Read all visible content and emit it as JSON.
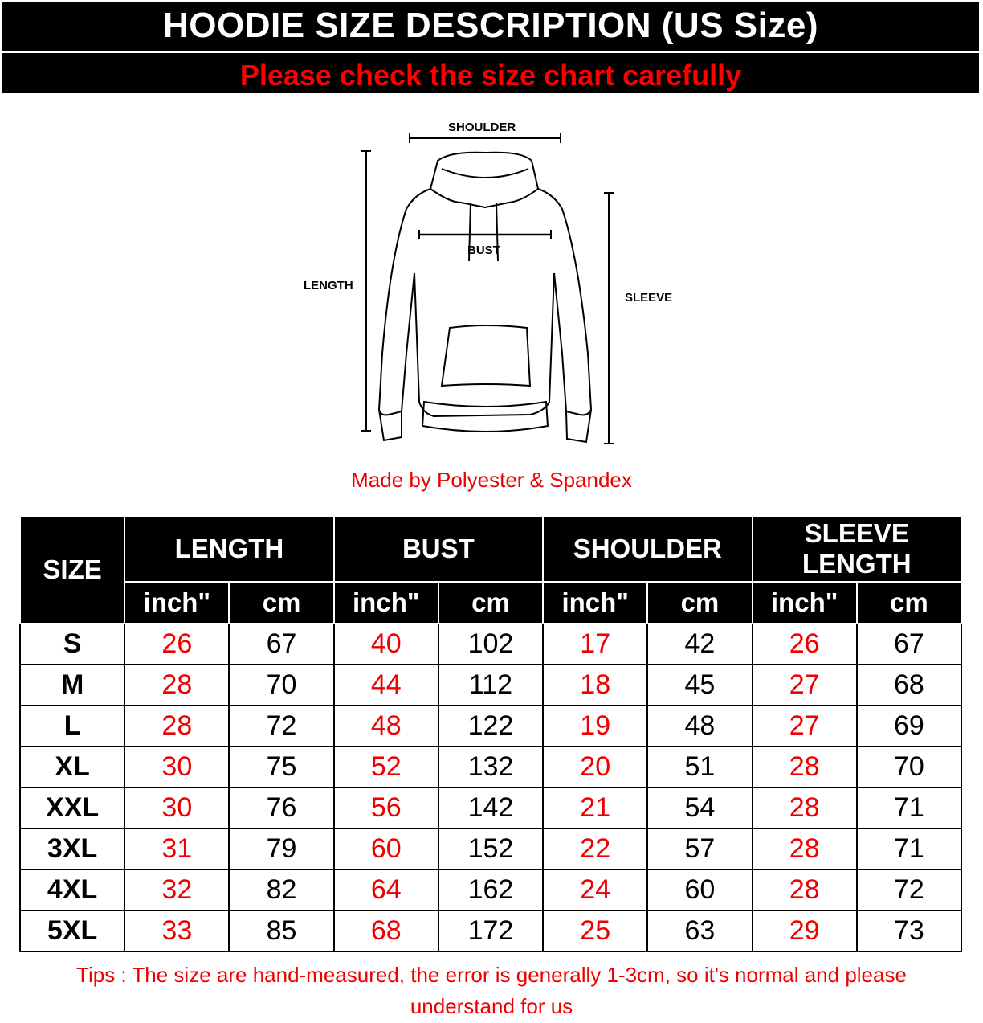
{
  "header": {
    "title": "HOODIE SIZE DESCRIPTION (US Size)",
    "subtitle": "Please check the size chart carefully"
  },
  "diagram": {
    "labels": {
      "shoulder": "SHOULDER",
      "bust": "BUST",
      "length": "LENGTH",
      "sleeve": "SLEEVE"
    }
  },
  "material": "Made by Polyester & Spandex",
  "table": {
    "size_header": "SIZE",
    "groups": [
      "LENGTH",
      "BUST",
      "SHOULDER",
      "SLEEVE LENGTH"
    ],
    "units": [
      "inch\"",
      "cm"
    ],
    "rows": [
      {
        "size": "S",
        "values": [
          "26",
          "67",
          "40",
          "102",
          "17",
          "42",
          "26",
          "67"
        ]
      },
      {
        "size": "M",
        "values": [
          "28",
          "70",
          "44",
          "112",
          "18",
          "45",
          "27",
          "68"
        ]
      },
      {
        "size": "L",
        "values": [
          "28",
          "72",
          "48",
          "122",
          "19",
          "48",
          "27",
          "69"
        ]
      },
      {
        "size": "XL",
        "values": [
          "30",
          "75",
          "52",
          "132",
          "20",
          "51",
          "28",
          "70"
        ]
      },
      {
        "size": "XXL",
        "values": [
          "30",
          "76",
          "56",
          "142",
          "21",
          "54",
          "28",
          "71"
        ]
      },
      {
        "size": "3XL",
        "values": [
          "31",
          "79",
          "60",
          "152",
          "22",
          "57",
          "28",
          "71"
        ]
      },
      {
        "size": "4XL",
        "values": [
          "32",
          "82",
          "64",
          "162",
          "24",
          "60",
          "28",
          "72"
        ]
      },
      {
        "size": "5XL",
        "values": [
          "33",
          "85",
          "68",
          "172",
          "25",
          "63",
          "29",
          "73"
        ]
      }
    ]
  },
  "tips": "Tips : The size are hand-measured, the error is generally 1-3cm, so it's normal and please understand for us",
  "colors": {
    "header_bg": "#000000",
    "accent_red": "#ff0000",
    "text": "#000000"
  }
}
